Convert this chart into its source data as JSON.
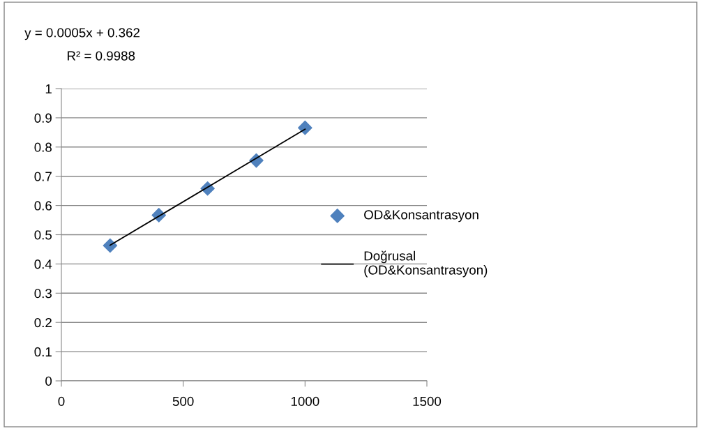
{
  "chart_data": {
    "type": "scatter",
    "annotations": [
      "y = 0.0005x + 0.362",
      "R² = 0.9988"
    ],
    "series": [
      {
        "name": "OD&Konsantrasyon",
        "color": "#4f81bd",
        "marker": "diamond",
        "x": [
          200,
          400,
          600,
          800,
          1000
        ],
        "values": [
          0.463,
          0.567,
          0.658,
          0.754,
          0.866
        ]
      },
      {
        "name": "Doğrusal\n(OD&Konsantrasyon)",
        "type": "line",
        "color": "#000000",
        "marker": "none",
        "line_style": "solid",
        "x": [
          200,
          1000
        ],
        "values": [
          0.464,
          0.861
        ]
      }
    ],
    "xlim": [
      0,
      1500
    ],
    "xticks": [
      0,
      500,
      1000,
      1500
    ],
    "ylim": [
      0,
      1
    ],
    "yticks": [
      0,
      0.1,
      0.2,
      0.3,
      0.4,
      0.5,
      0.6,
      0.7,
      0.8,
      0.9,
      1
    ],
    "grid": "y",
    "legend": "right"
  }
}
